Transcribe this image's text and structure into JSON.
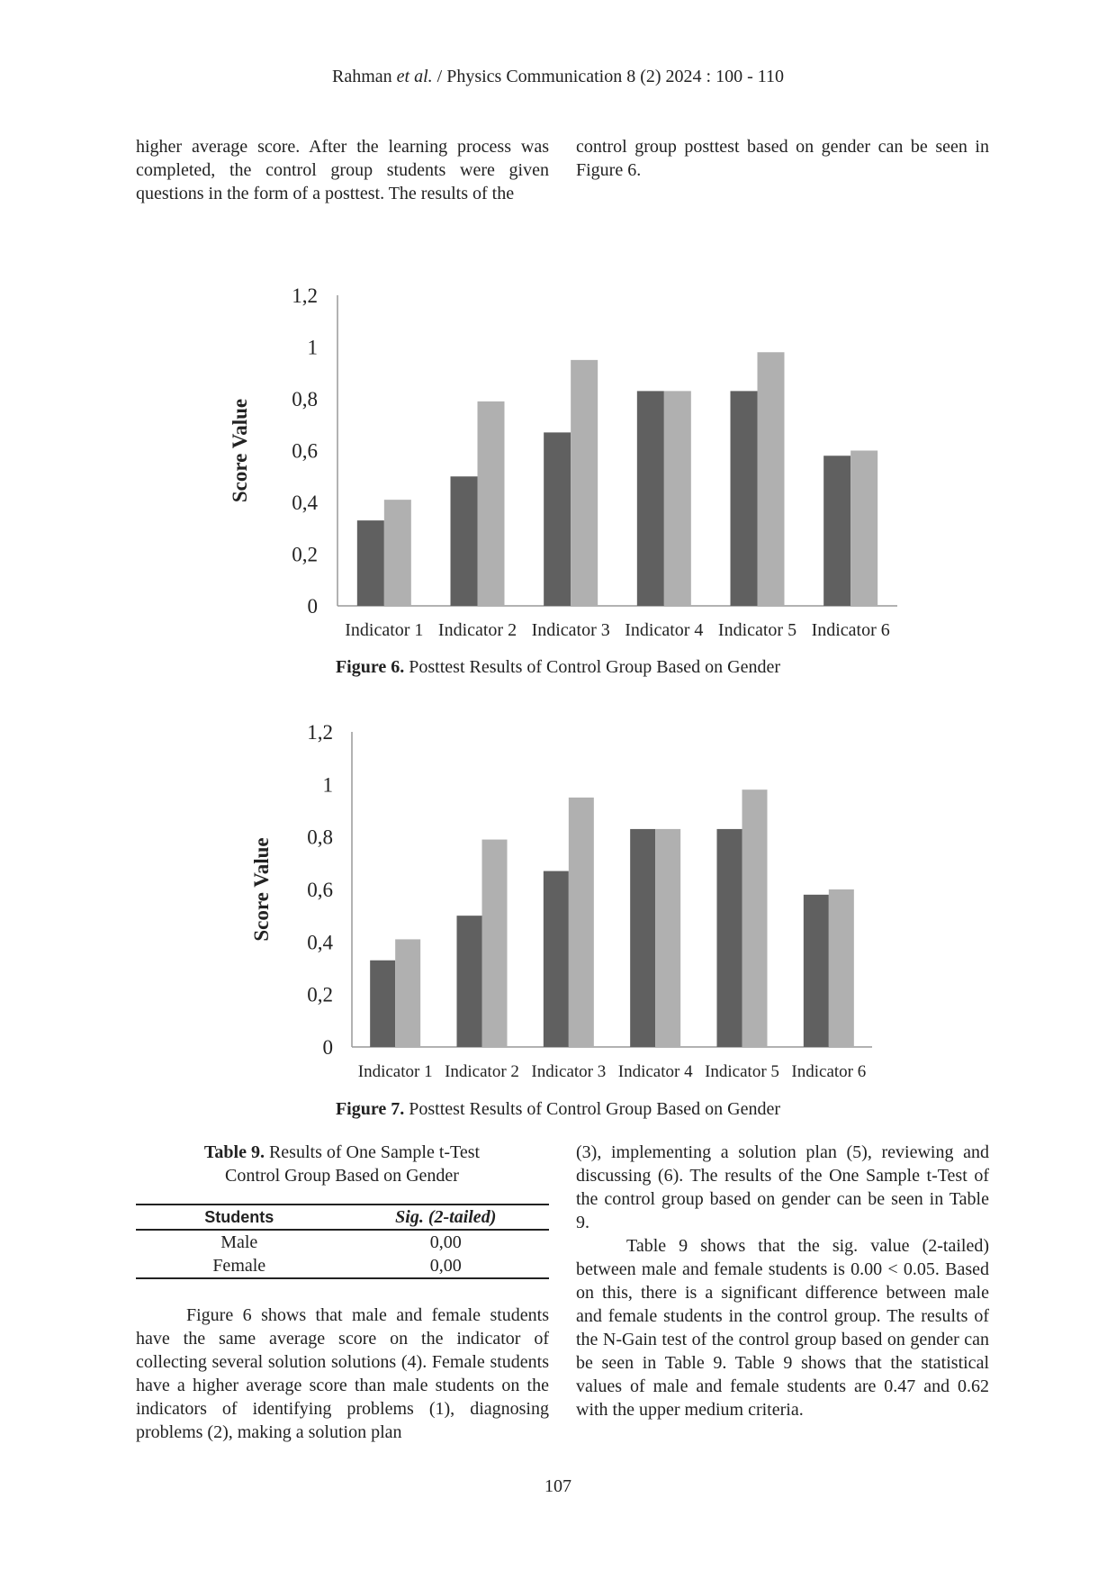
{
  "header": {
    "authors": "Rahman",
    "etal": "et al.",
    "journal": "/ Physics Communication 8 (2) 2024 : 100 - 110"
  },
  "intro": {
    "left": "higher average score. After the learning process was completed, the control group students were given questions in the form of a posttest. The results of the",
    "right": "control group posttest based on gender can be seen in Figure 6."
  },
  "chart_data": [
    {
      "type": "bar",
      "ylabel": "Score Value",
      "categories": [
        "Indicator 1",
        "Indicator 2",
        "Indicator 3",
        "Indicator 4",
        "Indicator 5",
        "Indicator 6"
      ],
      "series": [
        {
          "color": "#606060",
          "values": [
            0.33,
            0.5,
            0.67,
            0.83,
            0.83,
            0.58
          ]
        },
        {
          "color": "#b0b0b0",
          "values": [
            0.41,
            0.79,
            0.95,
            0.83,
            0.98,
            0.6
          ]
        }
      ],
      "ylim": [
        0,
        1.2
      ],
      "yticks": [
        0,
        {
          "value": 0.2,
          "label": "0,2"
        },
        {
          "value": 0.4,
          "label": "0,4"
        },
        {
          "value": 0.6,
          "label": "0,6"
        },
        {
          "value": 0.8,
          "label": "0,8"
        },
        1,
        {
          "value": 1.2,
          "label": "1,2"
        }
      ]
    },
    {
      "type": "bar",
      "ylabel": "Score Value",
      "categories": [
        "Indicator 1",
        "Indicator 2",
        "Indicator 3",
        "Indicator 4",
        "Indicator 5",
        "Indicator 6"
      ],
      "series": [
        {
          "color": "#606060",
          "values": [
            0.33,
            0.5,
            0.67,
            0.83,
            0.83,
            0.58
          ]
        },
        {
          "color": "#b0b0b0",
          "values": [
            0.41,
            0.79,
            0.95,
            0.83,
            0.98,
            0.6
          ]
        }
      ],
      "ylim": [
        0,
        1.2
      ],
      "yticks": [
        0,
        {
          "value": 0.2,
          "label": "0,2"
        },
        {
          "value": 0.4,
          "label": "0,4"
        },
        {
          "value": 0.6,
          "label": "0,6"
        },
        {
          "value": 0.8,
          "label": "0,8"
        },
        1,
        {
          "value": 1.2,
          "label": "1,2"
        }
      ]
    }
  ],
  "figure_captions": [
    {
      "label": "Figure 6.",
      "text": "Posttest Results of Control Group Based on Gender"
    },
    {
      "label": "Figure 7.",
      "text": "Posttest Results of Control Group Based on Gender"
    }
  ],
  "table": {
    "caption_label": "Table 9.",
    "caption_text": "Results of One Sample t-Test Control Group Based on Gender",
    "columns": [
      "Students",
      "Sig. (2-tailed)"
    ],
    "rows": [
      [
        "Male",
        "0,00"
      ],
      [
        "Female",
        "0,00"
      ]
    ]
  },
  "body": {
    "left": "Figure 6 shows that male and female students have the same average score on the indicator of collecting several solution solutions (4). Female students have a higher average score than male students on the indicators of identifying problems (1), diagnosing problems (2), making a solution plan",
    "right_1": "(3), implementing a solution plan (5), reviewing and discussing (6). The results of the One Sample t-Test of the control group based on gender can be seen in Table 9.",
    "right_2": "Table 9 shows that the sig. value (2-tailed) between male and female students is 0.00 < 0.05. Based on this, there is a significant difference between male and female students in the control group. The results of the N-Gain test of the control group based on gender can be seen in Table 9. Table 9 shows that the statistical values of male and female students are 0.47 and 0.62 with the upper medium criteria."
  },
  "page_number": "107"
}
